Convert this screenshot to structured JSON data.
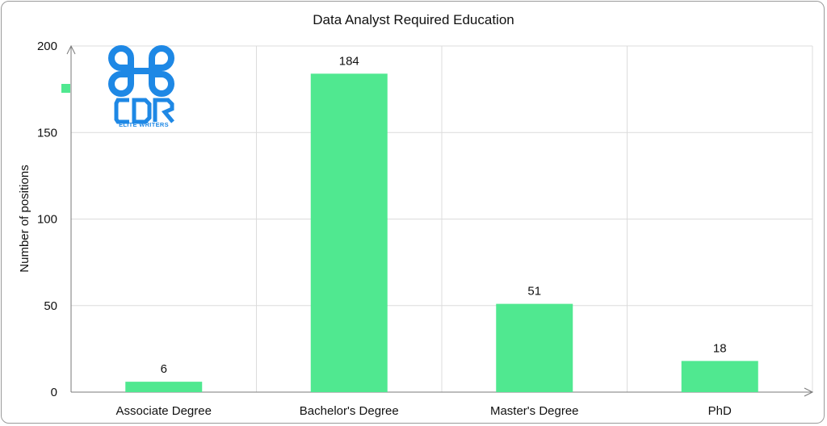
{
  "chart_data": {
    "type": "bar",
    "title": "Data Analyst Required Education",
    "xlabel": "",
    "ylabel": "Number of positions",
    "categories": [
      "Associate Degree",
      "Bachelor's Degree",
      "Master's Degree",
      "PhD"
    ],
    "series": [
      {
        "values": [
          6,
          184,
          51,
          18
        ],
        "color": "#50e890"
      }
    ],
    "data_labels": [
      "6",
      "184",
      "51",
      "18"
    ],
    "ylim": [
      0,
      200
    ],
    "yticks": [
      0,
      50,
      100,
      150,
      200
    ],
    "grid": true,
    "legend": "none",
    "legend_marker_color": "#50e890"
  },
  "watermark": {
    "logo_text": "CDR",
    "logo_subtitle": "ELITE WRITERS",
    "color": "#1e88e5"
  }
}
